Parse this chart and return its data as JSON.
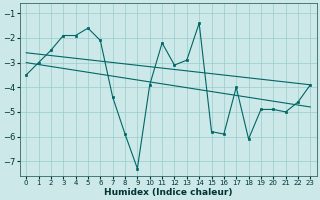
{
  "xlabel": "Humidex (Indice chaleur)",
  "bg_color": "#cce8e8",
  "grid_color": "#99cccc",
  "line_color": "#006666",
  "xlim": [
    -0.5,
    23.5
  ],
  "ylim": [
    -7.6,
    -0.6
  ],
  "yticks": [
    -7,
    -6,
    -5,
    -4,
    -3,
    -2,
    -1
  ],
  "xticks": [
    0,
    1,
    2,
    3,
    4,
    5,
    6,
    7,
    8,
    9,
    10,
    11,
    12,
    13,
    14,
    15,
    16,
    17,
    18,
    19,
    20,
    21,
    22,
    23
  ],
  "zigzag_x": [
    0,
    1,
    2,
    3,
    4,
    5,
    6,
    7,
    8,
    9,
    10,
    11,
    12,
    13,
    14,
    15,
    16,
    17,
    18,
    19,
    20,
    21,
    22,
    23
  ],
  "zigzag_y": [
    -3.5,
    -3.0,
    -2.5,
    -1.9,
    -1.9,
    -1.6,
    -2.1,
    -4.4,
    -5.9,
    -7.3,
    -3.9,
    -2.2,
    -3.1,
    -2.9,
    -1.4,
    -5.8,
    -5.9,
    -4.0,
    -6.1,
    -4.9,
    -4.9,
    -5.0,
    -4.6,
    -3.9
  ],
  "line1_x": [
    0,
    23
  ],
  "line1_y": [
    -2.6,
    -3.9
  ],
  "line2_x": [
    0,
    23
  ],
  "line2_y": [
    -3.0,
    -4.8
  ]
}
